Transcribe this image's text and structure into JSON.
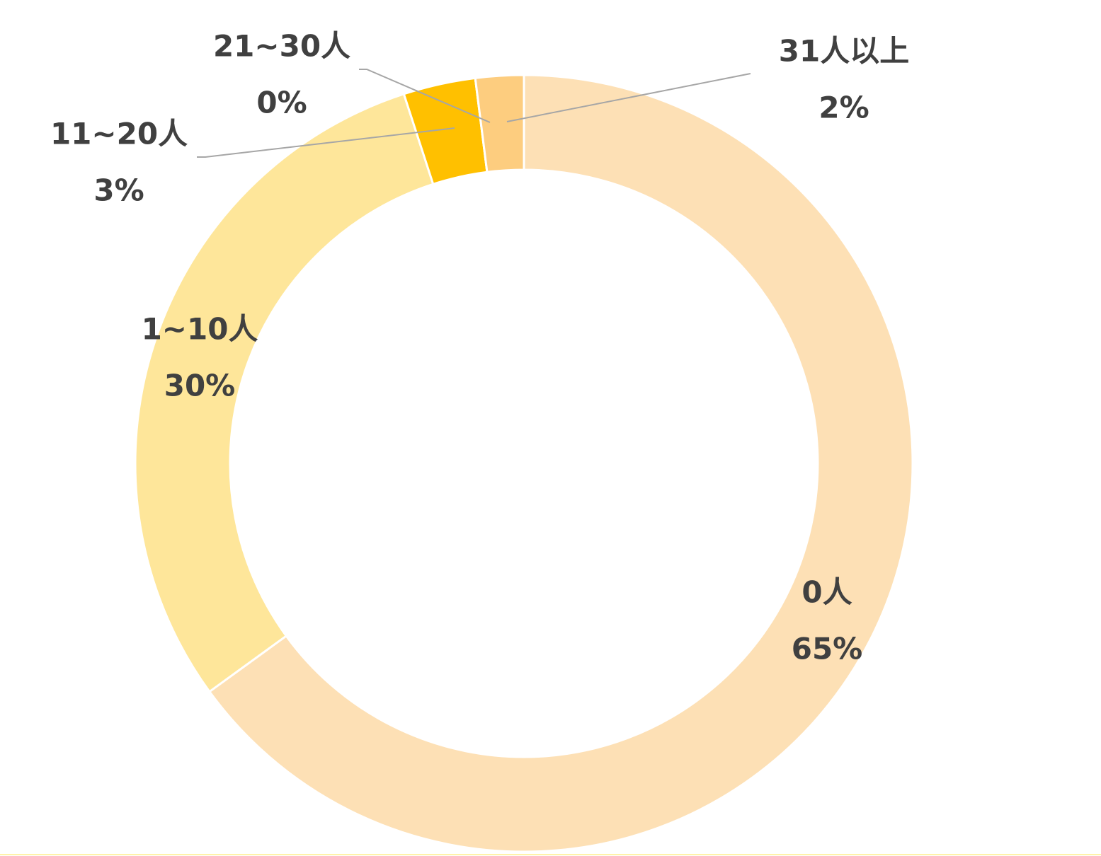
{
  "chart_data": {
    "type": "donut",
    "categories": [
      "0人",
      "1~10人",
      "11~20人",
      "21~30人",
      "31人以上"
    ],
    "values": [
      65,
      30,
      3,
      0,
      2
    ],
    "value_labels": [
      "65%",
      "30%",
      "3%",
      "0%",
      "2%"
    ],
    "colors": [
      "#fde0b5",
      "#fee69a",
      "#ffc000",
      "#f8b94c",
      "#fdcd7f"
    ]
  }
}
